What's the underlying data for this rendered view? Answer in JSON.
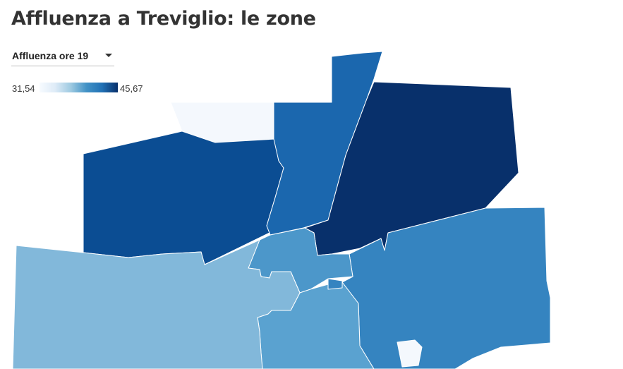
{
  "title": "Affluenza a Treviglio: le zone",
  "selector": {
    "selected": "Affluenza ore 19"
  },
  "legend": {
    "min": "31,54",
    "max": "45,67",
    "color_low": "#f7fbff",
    "color_high": "#08306b"
  },
  "zone_colors": {
    "darkest": "#08306b",
    "dark": "#0b4d93",
    "mid_dark": "#1b67ae",
    "mid": "#3584c0",
    "mid_light": "#4c97ca",
    "light": "#5aa2d0",
    "lighter": "#82b8da",
    "lightest": "#f4f8fd"
  }
}
